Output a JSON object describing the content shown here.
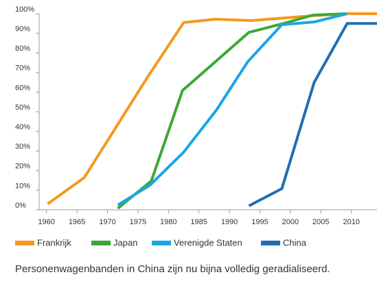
{
  "chart_data": {
    "type": "line",
    "caption": "Personenwagenbanden in China zijn nu bijna volledig geradialiseerd.",
    "xlim": [
      1958.8,
      2014.2
    ],
    "xticks": [
      1960,
      1965,
      1970,
      1975,
      1980,
      1985,
      1990,
      1995,
      2000,
      2005,
      2010
    ],
    "ylim": [
      0,
      100
    ],
    "yticks": [
      {
        "value": 0,
        "label": "0%"
      },
      {
        "value": 10,
        "label": "10%"
      },
      {
        "value": 20,
        "label": "20%"
      },
      {
        "value": 30,
        "label": "30%"
      },
      {
        "value": 40,
        "label": "40%"
      },
      {
        "value": 50,
        "label": "50%"
      },
      {
        "value": 60,
        "label": "60%"
      },
      {
        "value": 70,
        "label": "70%"
      },
      {
        "value": 80,
        "label": "80%"
      },
      {
        "value": 90,
        "label": "90%"
      },
      {
        "value": 100,
        "label": "100%"
      }
    ],
    "series": [
      {
        "name": "Frankrijk",
        "color": "#f39a1e",
        "x": [
          1960.2,
          1966.2,
          1976.4,
          1982.5,
          1987.7,
          1993.6,
          2003.7,
          2009.3,
          2014.2
        ],
        "values": [
          3,
          16.4,
          66.8,
          95.5,
          97.2,
          96.5,
          99,
          100,
          100
        ]
      },
      {
        "name": "Japan",
        "color": "#3aa935",
        "x": [
          1971.7,
          1977.2,
          1982.3,
          1993.2,
          1998.6,
          2003.7,
          2009.3
        ],
        "values": [
          0.7,
          14.7,
          60.8,
          90.5,
          94.8,
          99.3,
          100
        ]
      },
      {
        "name": "Verenigde Staten",
        "color": "#1ba6e2",
        "x": [
          1971.7,
          1977,
          1982.5,
          1987.9,
          1993,
          1998.6,
          2003.9,
          2009.3
        ],
        "values": [
          2.4,
          12.6,
          29.4,
          51,
          75.5,
          94.4,
          95.8,
          100
        ]
      },
      {
        "name": "China",
        "color": "#1f6fb3",
        "x": [
          1993.2,
          1998.6,
          2003.9,
          2009.3,
          2014.2
        ],
        "values": [
          2,
          10.8,
          65,
          95,
          95
        ]
      }
    ]
  }
}
